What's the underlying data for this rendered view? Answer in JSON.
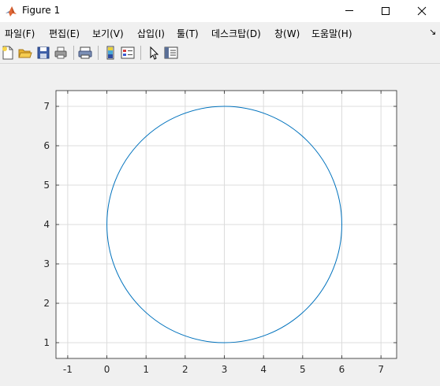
{
  "window": {
    "title": "Figure 1"
  },
  "menu": {
    "items": [
      "파일(F)",
      "편집(E)",
      "보기(V)",
      "삽입(I)",
      "툴(T)",
      "데스크탑(D)",
      "창(W)",
      "도움말(H)"
    ]
  },
  "toolbar": {
    "buttons": [
      "new-figure-icon",
      "open-file-icon",
      "save-icon",
      "print-icon",
      "link-plot-icon",
      "insert-colorbar-icon",
      "insert-legend-icon",
      "edit-plot-icon",
      "open-property-inspector-icon"
    ]
  },
  "chart_data": {
    "type": "line",
    "title": "",
    "xlabel": "",
    "ylabel": "",
    "xlim": [
      -1.3,
      7.4
    ],
    "ylim": [
      0.6,
      7.4
    ],
    "xticks": [
      -1,
      0,
      1,
      2,
      3,
      4,
      5,
      6,
      7
    ],
    "yticks": [
      1,
      2,
      3,
      4,
      5,
      6,
      7
    ],
    "grid": true,
    "series": [
      {
        "shape": "circle",
        "center": [
          3,
          4
        ],
        "radius": 3,
        "color": "#0072bd"
      }
    ]
  },
  "colors": {
    "line": "#0072bd",
    "grid": "#dcdcdc",
    "axes": "#262626",
    "background": "#f0f0f0"
  }
}
